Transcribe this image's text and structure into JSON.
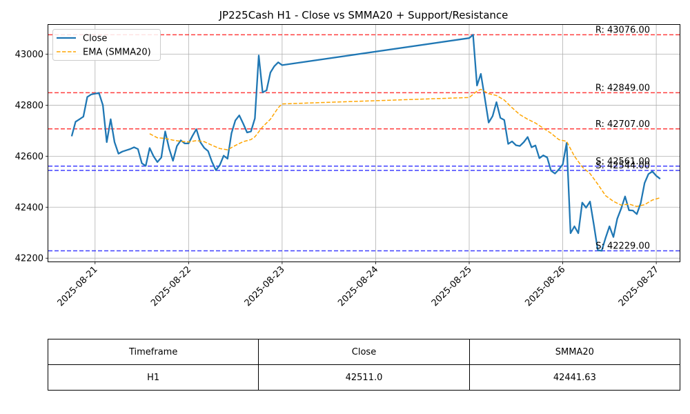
{
  "chart_data": {
    "type": "line",
    "title": "JP225Cash H1 - Close vs SMMA20 + Support/Resistance",
    "xlabel": "",
    "ylabel": "",
    "ylim": [
      42187,
      43115
    ],
    "yticks": [
      42200,
      42400,
      42600,
      42800,
      43000
    ],
    "xticks": [
      "2025-08-21",
      "2025-08-22",
      "2025-08-23",
      "2025-08-24",
      "2025-08-25",
      "2025-08-26",
      "2025-08-27"
    ],
    "grid": true,
    "legend_position": "top-left",
    "series": [
      {
        "name": "Close",
        "color": "#1f77b4",
        "style": "solid",
        "points": [
          [
            "2025-08-20 18:00",
            42678
          ],
          [
            "2025-08-20 19:00",
            42735
          ],
          [
            "2025-08-20 20:00",
            42745
          ],
          [
            "2025-08-20 21:00",
            42755
          ],
          [
            "2025-08-20 22:00",
            42832
          ],
          [
            "2025-08-20 23:00",
            42842
          ],
          [
            "2025-08-21 00:00",
            42845
          ],
          [
            "2025-08-21 01:00",
            42848
          ],
          [
            "2025-08-21 02:00",
            42800
          ],
          [
            "2025-08-21 03:00",
            42655
          ],
          [
            "2025-08-21 04:00",
            42745
          ],
          [
            "2025-08-21 05:00",
            42655
          ],
          [
            "2025-08-21 06:00",
            42610
          ],
          [
            "2025-08-21 07:00",
            42618
          ],
          [
            "2025-08-21 08:00",
            42623
          ],
          [
            "2025-08-21 09:00",
            42628
          ],
          [
            "2025-08-21 10:00",
            42635
          ],
          [
            "2025-08-21 11:00",
            42628
          ],
          [
            "2025-08-21 12:00",
            42572
          ],
          [
            "2025-08-21 13:00",
            42562
          ],
          [
            "2025-08-21 14:00",
            42632
          ],
          [
            "2025-08-21 15:00",
            42600
          ],
          [
            "2025-08-21 16:00",
            42577
          ],
          [
            "2025-08-21 17:00",
            42595
          ],
          [
            "2025-08-21 18:00",
            42697
          ],
          [
            "2025-08-21 19:00",
            42630
          ],
          [
            "2025-08-21 20:00",
            42582
          ],
          [
            "2025-08-21 21:00",
            42640
          ],
          [
            "2025-08-21 22:00",
            42662
          ],
          [
            "2025-08-21 23:00",
            42650
          ],
          [
            "2025-08-22 00:00",
            42650
          ],
          [
            "2025-08-22 01:00",
            42680
          ],
          [
            "2025-08-22 02:00",
            42706
          ],
          [
            "2025-08-22 03:00",
            42655
          ],
          [
            "2025-08-22 04:00",
            42633
          ],
          [
            "2025-08-22 05:00",
            42620
          ],
          [
            "2025-08-22 06:00",
            42578
          ],
          [
            "2025-08-22 07:00",
            42545
          ],
          [
            "2025-08-22 08:00",
            42565
          ],
          [
            "2025-08-22 09:00",
            42602
          ],
          [
            "2025-08-22 10:00",
            42590
          ],
          [
            "2025-08-22 11:00",
            42690
          ],
          [
            "2025-08-22 12:00",
            42740
          ],
          [
            "2025-08-22 13:00",
            42760
          ],
          [
            "2025-08-22 14:00",
            42728
          ],
          [
            "2025-08-22 15:00",
            42693
          ],
          [
            "2025-08-22 16:00",
            42697
          ],
          [
            "2025-08-22 17:00",
            42748
          ],
          [
            "2025-08-22 18:00",
            42995
          ],
          [
            "2025-08-22 19:00",
            42850
          ],
          [
            "2025-08-22 20:00",
            42858
          ],
          [
            "2025-08-22 21:00",
            42928
          ],
          [
            "2025-08-22 22:00",
            42953
          ],
          [
            "2025-08-22 23:00",
            42968
          ],
          [
            "2025-08-23 00:00",
            42957
          ],
          [
            "2025-08-25 00:00",
            43063
          ],
          [
            "2025-08-25 01:00",
            43076
          ],
          [
            "2025-08-25 02:00",
            42877
          ],
          [
            "2025-08-25 03:00",
            42923
          ],
          [
            "2025-08-25 04:00",
            42828
          ],
          [
            "2025-08-25 05:00",
            42732
          ],
          [
            "2025-08-25 06:00",
            42757
          ],
          [
            "2025-08-25 07:00",
            42812
          ],
          [
            "2025-08-25 08:00",
            42750
          ],
          [
            "2025-08-25 09:00",
            42742
          ],
          [
            "2025-08-25 10:00",
            42648
          ],
          [
            "2025-08-25 11:00",
            42658
          ],
          [
            "2025-08-25 12:00",
            42643
          ],
          [
            "2025-08-25 13:00",
            42640
          ],
          [
            "2025-08-25 14:00",
            42655
          ],
          [
            "2025-08-25 15:00",
            42675
          ],
          [
            "2025-08-25 16:00",
            42635
          ],
          [
            "2025-08-25 17:00",
            42642
          ],
          [
            "2025-08-25 18:00",
            42592
          ],
          [
            "2025-08-25 19:00",
            42603
          ],
          [
            "2025-08-25 20:00",
            42595
          ],
          [
            "2025-08-25 21:00",
            42543
          ],
          [
            "2025-08-25 22:00",
            42532
          ],
          [
            "2025-08-25 23:00",
            42548
          ],
          [
            "2025-08-26 00:00",
            42568
          ],
          [
            "2025-08-26 01:00",
            42652
          ],
          [
            "2025-08-26 02:00",
            42298
          ],
          [
            "2025-08-26 03:00",
            42325
          ],
          [
            "2025-08-26 04:00",
            42298
          ],
          [
            "2025-08-26 05:00",
            42418
          ],
          [
            "2025-08-26 06:00",
            42398
          ],
          [
            "2025-08-26 07:00",
            42422
          ],
          [
            "2025-08-26 08:00",
            42330
          ],
          [
            "2025-08-26 09:00",
            42231
          ],
          [
            "2025-08-26 10:00",
            42229
          ],
          [
            "2025-08-26 11:00",
            42280
          ],
          [
            "2025-08-26 12:00",
            42325
          ],
          [
            "2025-08-26 13:00",
            42283
          ],
          [
            "2025-08-26 14:00",
            42355
          ],
          [
            "2025-08-26 15:00",
            42395
          ],
          [
            "2025-08-26 16:00",
            42442
          ],
          [
            "2025-08-26 17:00",
            42388
          ],
          [
            "2025-08-26 18:00",
            42387
          ],
          [
            "2025-08-26 19:00",
            42373
          ],
          [
            "2025-08-26 20:00",
            42415
          ],
          [
            "2025-08-26 21:00",
            42495
          ],
          [
            "2025-08-26 22:00",
            42530
          ],
          [
            "2025-08-26 23:00",
            42540
          ],
          [
            "2025-08-27 00:00",
            42523
          ],
          [
            "2025-08-27 01:00",
            42511
          ]
        ]
      },
      {
        "name": "EMA (SMMA20)",
        "color": "#ffa500",
        "style": "dashed",
        "points": [
          [
            "2025-08-21 14:00",
            42688
          ],
          [
            "2025-08-21 16:00",
            42672
          ],
          [
            "2025-08-21 18:00",
            42670
          ],
          [
            "2025-08-21 20:00",
            42663
          ],
          [
            "2025-08-21 22:00",
            42658
          ],
          [
            "2025-08-22 00:00",
            42656
          ],
          [
            "2025-08-22 02:00",
            42661
          ],
          [
            "2025-08-22 04:00",
            42657
          ],
          [
            "2025-08-22 06:00",
            42643
          ],
          [
            "2025-08-22 08:00",
            42630
          ],
          [
            "2025-08-22 10:00",
            42625
          ],
          [
            "2025-08-22 12:00",
            42642
          ],
          [
            "2025-08-22 14:00",
            42657
          ],
          [
            "2025-08-22 16:00",
            42665
          ],
          [
            "2025-08-22 17:00",
            42676
          ],
          [
            "2025-08-22 19:00",
            42715
          ],
          [
            "2025-08-22 21:00",
            42745
          ],
          [
            "2025-08-22 23:00",
            42790
          ],
          [
            "2025-08-23 00:00",
            42805
          ],
          [
            "2025-08-25 00:00",
            42830
          ],
          [
            "2025-08-25 02:00",
            42855
          ],
          [
            "2025-08-25 03:00",
            42862
          ],
          [
            "2025-08-25 05:00",
            42845
          ],
          [
            "2025-08-25 07:00",
            42838
          ],
          [
            "2025-08-25 09:00",
            42820
          ],
          [
            "2025-08-25 11:00",
            42790
          ],
          [
            "2025-08-25 13:00",
            42763
          ],
          [
            "2025-08-25 15:00",
            42745
          ],
          [
            "2025-08-25 17:00",
            42730
          ],
          [
            "2025-08-25 19:00",
            42710
          ],
          [
            "2025-08-25 21:00",
            42690
          ],
          [
            "2025-08-25 23:00",
            42665
          ],
          [
            "2025-08-26 01:00",
            42658
          ],
          [
            "2025-08-26 03:00",
            42600
          ],
          [
            "2025-08-26 05:00",
            42558
          ],
          [
            "2025-08-26 07:00",
            42532
          ],
          [
            "2025-08-26 09:00",
            42490
          ],
          [
            "2025-08-26 11:00",
            42445
          ],
          [
            "2025-08-26 13:00",
            42423
          ],
          [
            "2025-08-26 15:00",
            42408
          ],
          [
            "2025-08-26 17:00",
            42412
          ],
          [
            "2025-08-26 19:00",
            42403
          ],
          [
            "2025-08-26 21:00",
            42410
          ],
          [
            "2025-08-26 23:00",
            42428
          ],
          [
            "2025-08-27 01:00",
            42437
          ]
        ]
      }
    ],
    "levels": [
      {
        "kind": "resistance",
        "value": 43076,
        "label": "R: 43076.00",
        "color": "#ff0000"
      },
      {
        "kind": "resistance",
        "value": 42849,
        "label": "R: 42849.00",
        "color": "#ff0000"
      },
      {
        "kind": "resistance",
        "value": 42707,
        "label": "R: 42707.00",
        "color": "#ff0000"
      },
      {
        "kind": "support",
        "value": 42561,
        "label": "S: 42561.00",
        "color": "#0000ff"
      },
      {
        "kind": "support",
        "value": 42544,
        "label": "S: 42544.00",
        "color": "#0000ff"
      },
      {
        "kind": "support",
        "value": 42229,
        "label": "S: 42229.00",
        "color": "#0000ff"
      }
    ]
  },
  "table": {
    "headers": [
      "Timeframe",
      "Close",
      "SMMA20"
    ],
    "row": [
      "H1",
      "42511.0",
      "42441.63"
    ]
  }
}
